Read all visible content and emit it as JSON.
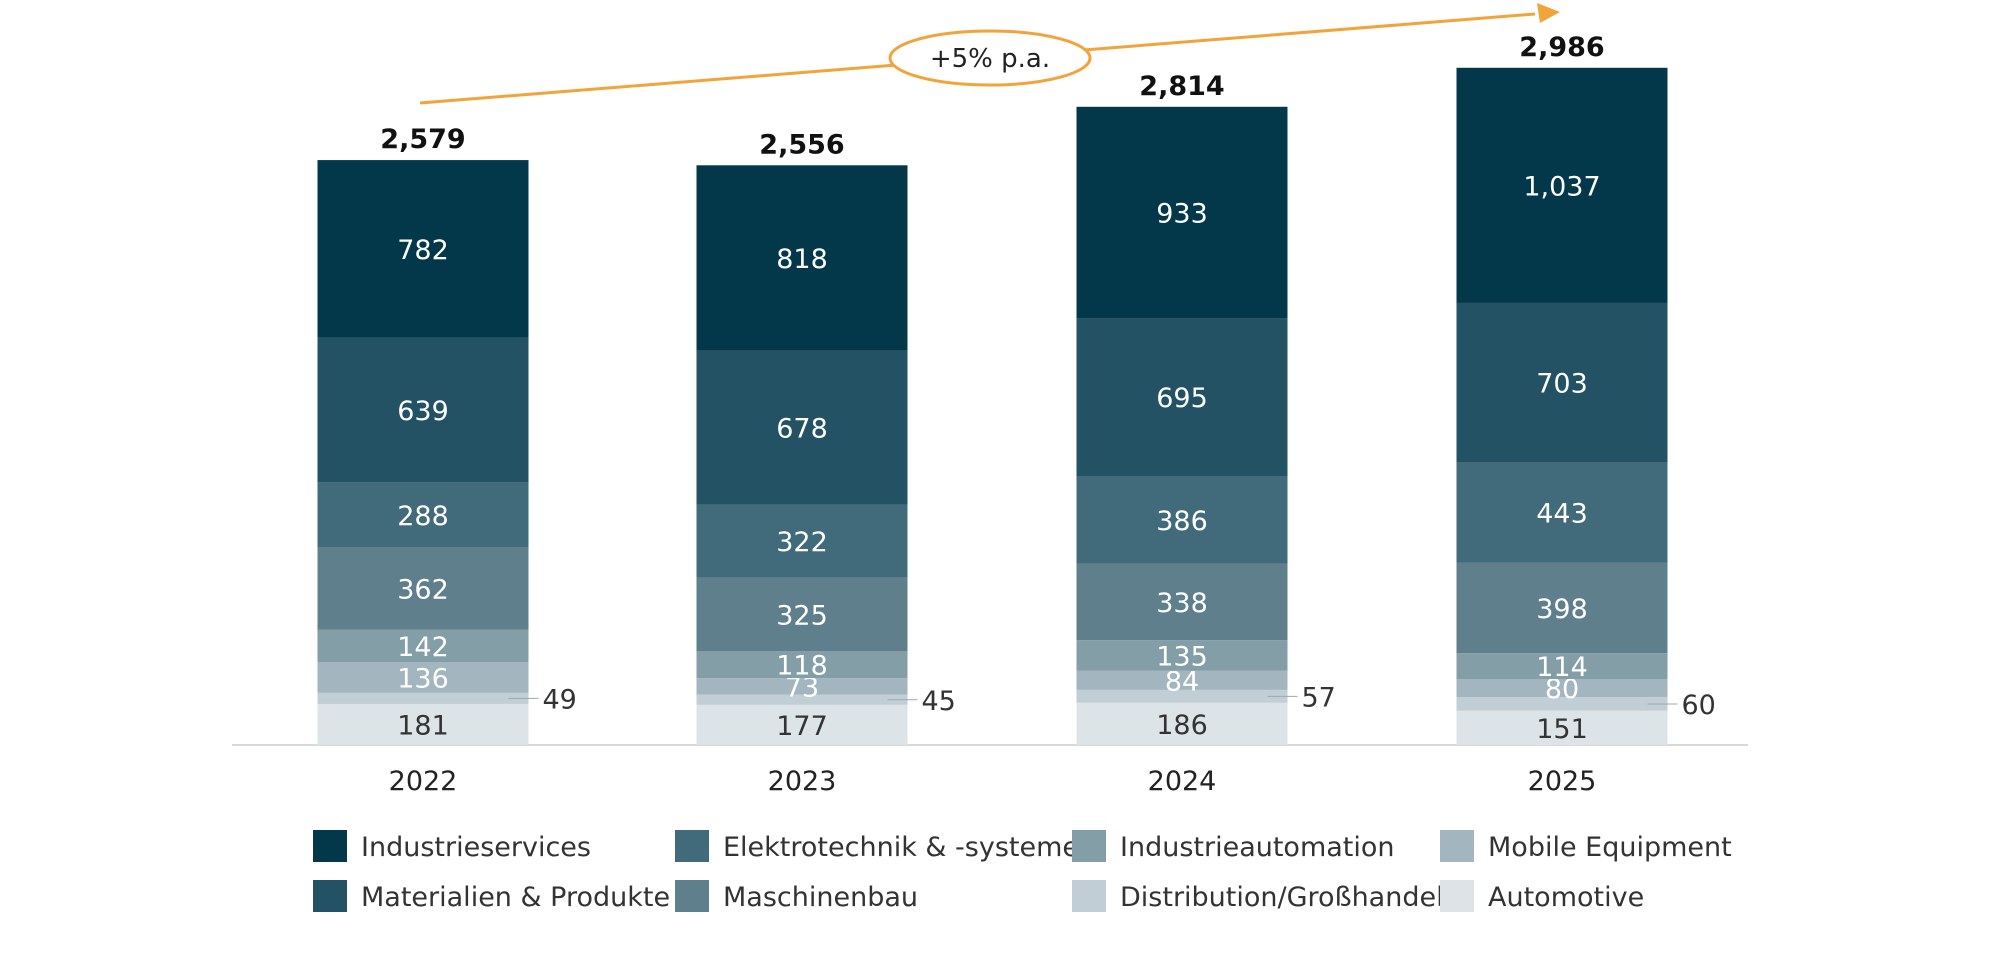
{
  "chart_data": {
    "type": "bar",
    "stacked": true,
    "categories": [
      "2022",
      "2023",
      "2024",
      "2025"
    ],
    "totals": [
      "2,579",
      "2,556",
      "2,814",
      "2,986"
    ],
    "series": [
      {
        "name": "Automotive",
        "color": "#dde4e8",
        "text_color": "#333333",
        "values": [
          181,
          177,
          186,
          151
        ]
      },
      {
        "name": "Distribution/Großhandel",
        "color": "#c2ced5",
        "text_color": "#333333",
        "values": [
          49,
          45,
          57,
          60
        ]
      },
      {
        "name": "Mobile Equipment",
        "color": "#a3b5be",
        "text_color": "#ffffff",
        "values": [
          136,
          73,
          84,
          80
        ]
      },
      {
        "name": "Industrieautomation",
        "color": "#849ea8",
        "text_color": "#ffffff",
        "values": [
          142,
          118,
          135,
          114
        ]
      },
      {
        "name": "Maschinenbau",
        "color": "#5f7f8c",
        "text_color": "#ffffff",
        "values": [
          362,
          325,
          338,
          398
        ]
      },
      {
        "name": "Elektrotechnik & -systeme",
        "color": "#416a7a",
        "text_color": "#ffffff",
        "values": [
          288,
          322,
          386,
          443
        ]
      },
      {
        "name": "Materialien & Produkte",
        "color": "#225263",
        "text_color": "#ffffff",
        "values": [
          639,
          678,
          695,
          703
        ]
      },
      {
        "name": "Industrieservices",
        "color": "#03384b",
        "text_color": "#ffffff",
        "values": [
          782,
          818,
          933,
          1037
        ]
      }
    ],
    "value_labels": [
      [
        "181",
        "177",
        "186",
        "151"
      ],
      [
        "49",
        "45",
        "57",
        "60"
      ],
      [
        "136",
        "73",
        "84",
        "80"
      ],
      [
        "142",
        "118",
        "135",
        "114"
      ],
      [
        "362",
        "325",
        "338",
        "398"
      ],
      [
        "288",
        "322",
        "386",
        "443"
      ],
      [
        "639",
        "678",
        "695",
        "703"
      ],
      [
        "782",
        "818",
        "933",
        "1,037"
      ]
    ],
    "legend_order": [
      "Industrieservices",
      "Elektrotechnik & -systeme",
      "Industrieautomation",
      "Mobile Equipment",
      "Materialien & Produkte",
      "Maschinenbau",
      "Distribution/Großhandel",
      "Automotive"
    ],
    "legend_placement": "bottom",
    "annotation": {
      "text": "+5% p.a.",
      "color": "#f2a33a"
    },
    "grid": false
  }
}
